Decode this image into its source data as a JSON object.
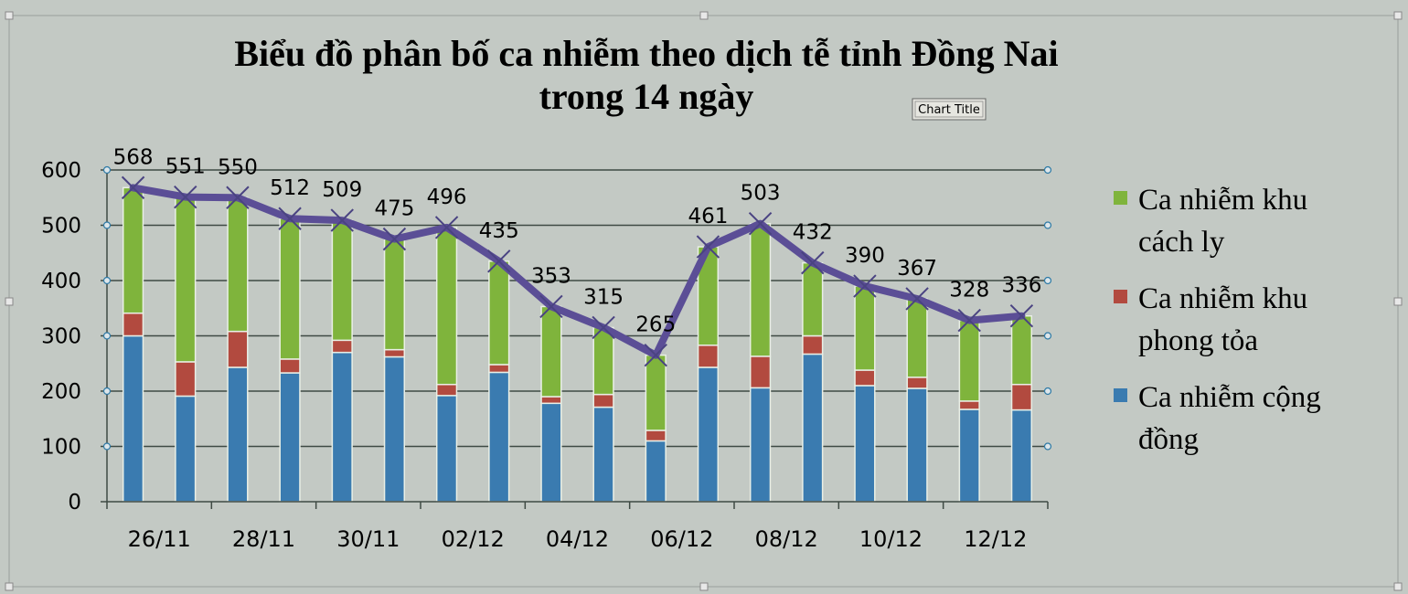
{
  "chart_data": {
    "type": "bar",
    "title_lines": [
      "Biểu đồ phân bố ca nhiễm theo dịch tễ tỉnh Đồng Nai",
      "trong 14 ngày"
    ],
    "tooltip": "Chart Title",
    "ylim": [
      0,
      600
    ],
    "yticks": [
      0,
      100,
      200,
      300,
      400,
      500,
      600
    ],
    "xtick_labels": [
      "26/11",
      "28/11",
      "30/11",
      "02/12",
      "04/12",
      "06/12",
      "08/12",
      "10/12",
      "12/12"
    ],
    "stacked": true,
    "grid": true,
    "legend_position": "right",
    "series": [
      {
        "name": "Ca nhiễm cộng đồng",
        "color": "#3a7bb0",
        "values": [
          300,
          191,
          243,
          233,
          270,
          262,
          192,
          234,
          178,
          171,
          110,
          243,
          206,
          267,
          210,
          205,
          167,
          166
        ]
      },
      {
        "name": "Ca nhiễm khu phong tỏa",
        "color": "#b24a3f",
        "values": [
          41,
          62,
          65,
          25,
          22,
          13,
          20,
          14,
          12,
          23,
          19,
          40,
          57,
          33,
          28,
          20,
          15,
          46
        ]
      },
      {
        "name": "Ca nhiễm khu cách ly",
        "color": "#7fb43c",
        "values": [
          227,
          298,
          242,
          254,
          217,
          200,
          284,
          187,
          163,
          121,
          136,
          178,
          240,
          132,
          152,
          142,
          146,
          124
        ]
      }
    ],
    "totals_line": {
      "color": "#5b4e96",
      "values": [
        568,
        551,
        550,
        512,
        509,
        475,
        496,
        435,
        353,
        315,
        265,
        461,
        503,
        432,
        390,
        367,
        328,
        336
      ]
    },
    "legend_entries": [
      {
        "lines": [
          "Ca nhiễm khu",
          "cách ly"
        ],
        "color": "#7fb43c"
      },
      {
        "lines": [
          "Ca nhiễm khu",
          "phong tỏa"
        ],
        "color": "#b24a3f"
      },
      {
        "lines": [
          "Ca nhiễm cộng",
          "đồng"
        ],
        "color": "#3a7bb0"
      }
    ]
  }
}
